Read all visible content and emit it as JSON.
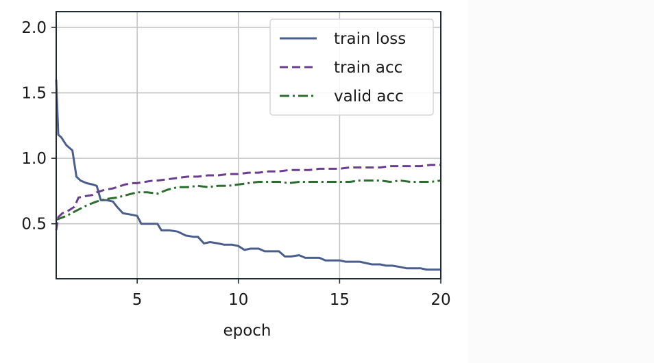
{
  "chart_data": {
    "type": "line",
    "xlabel": "epoch",
    "ylabel": "",
    "xlim": [
      1,
      20
    ],
    "ylim": [
      0.08,
      2.12
    ],
    "xticks": [
      5,
      10,
      15,
      20
    ],
    "yticks": [
      0.5,
      1.0,
      1.5,
      2.0
    ],
    "xtick_labels": [
      "5",
      "10",
      "15",
      "20"
    ],
    "ytick_labels": [
      "0.5",
      "1.0",
      "1.5",
      "2.0"
    ],
    "grid": true,
    "legend_position": "top-right",
    "series": [
      {
        "name": "train loss",
        "color": "#4a5e8c",
        "dash": "solid",
        "x": [
          1.0,
          1.1,
          1.25,
          1.5,
          1.8,
          2.0,
          2.2,
          2.5,
          2.8,
          3.0,
          3.2,
          3.5,
          3.8,
          4.0,
          4.3,
          4.7,
          5.0,
          5.2,
          5.6,
          6.0,
          6.2,
          6.6,
          7.0,
          7.4,
          7.8,
          8.0,
          8.3,
          8.6,
          9.0,
          9.3,
          9.7,
          10.0,
          10.3,
          10.6,
          11.0,
          11.3,
          11.6,
          12.0,
          12.3,
          12.6,
          13.0,
          13.3,
          13.6,
          14.0,
          14.3,
          14.6,
          15.0,
          15.3,
          15.6,
          16.0,
          16.3,
          16.6,
          17.0,
          17.3,
          17.6,
          18.0,
          18.3,
          18.6,
          19.0,
          19.3,
          19.6,
          20.0
        ],
        "y": [
          1.6,
          1.18,
          1.16,
          1.1,
          1.06,
          0.86,
          0.83,
          0.81,
          0.8,
          0.79,
          0.68,
          0.68,
          0.67,
          0.63,
          0.58,
          0.57,
          0.56,
          0.5,
          0.5,
          0.5,
          0.45,
          0.45,
          0.44,
          0.41,
          0.4,
          0.4,
          0.35,
          0.36,
          0.35,
          0.34,
          0.34,
          0.33,
          0.3,
          0.31,
          0.31,
          0.29,
          0.29,
          0.29,
          0.25,
          0.25,
          0.26,
          0.24,
          0.24,
          0.24,
          0.22,
          0.22,
          0.22,
          0.21,
          0.21,
          0.21,
          0.2,
          0.19,
          0.19,
          0.18,
          0.18,
          0.17,
          0.16,
          0.16,
          0.16,
          0.15,
          0.15,
          0.15
        ]
      },
      {
        "name": "train acc",
        "color": "#6a3d8f",
        "dash": "dashed",
        "x": [
          1.0,
          1.1,
          1.3,
          1.6,
          1.9,
          2.1,
          2.4,
          2.8,
          3.0,
          3.4,
          3.8,
          4.0,
          4.4,
          4.8,
          5.0,
          5.4,
          5.8,
          6.0,
          6.5,
          7.0,
          7.5,
          8.0,
          8.5,
          9.0,
          9.5,
          10.0,
          10.5,
          11.0,
          11.5,
          12.0,
          12.5,
          13.0,
          13.5,
          14.0,
          14.5,
          15.0,
          15.5,
          16.0,
          16.5,
          17.0,
          17.5,
          18.0,
          18.5,
          19.0,
          19.5,
          20.0
        ],
        "y": [
          0.45,
          0.55,
          0.58,
          0.6,
          0.63,
          0.7,
          0.71,
          0.72,
          0.74,
          0.76,
          0.77,
          0.78,
          0.8,
          0.81,
          0.81,
          0.82,
          0.83,
          0.83,
          0.84,
          0.85,
          0.86,
          0.86,
          0.87,
          0.87,
          0.88,
          0.88,
          0.89,
          0.89,
          0.9,
          0.9,
          0.91,
          0.91,
          0.91,
          0.92,
          0.92,
          0.92,
          0.93,
          0.93,
          0.93,
          0.93,
          0.94,
          0.94,
          0.94,
          0.94,
          0.95,
          0.95
        ]
      },
      {
        "name": "valid acc",
        "color": "#2e6b2e",
        "dash": "dashdot",
        "x": [
          1.0,
          1.5,
          2.0,
          2.5,
          3.0,
          3.5,
          4.0,
          4.5,
          5.0,
          5.5,
          6.0,
          6.5,
          7.0,
          7.5,
          8.0,
          8.5,
          9.0,
          9.5,
          10.0,
          10.5,
          11.0,
          11.5,
          12.0,
          12.5,
          13.0,
          13.5,
          14.0,
          14.5,
          15.0,
          15.5,
          16.0,
          16.5,
          17.0,
          17.5,
          18.0,
          18.5,
          19.0,
          19.5,
          20.0
        ],
        "y": [
          0.53,
          0.56,
          0.6,
          0.64,
          0.67,
          0.69,
          0.7,
          0.72,
          0.74,
          0.74,
          0.73,
          0.76,
          0.78,
          0.78,
          0.79,
          0.78,
          0.79,
          0.79,
          0.8,
          0.81,
          0.82,
          0.82,
          0.82,
          0.81,
          0.82,
          0.82,
          0.82,
          0.82,
          0.82,
          0.82,
          0.83,
          0.83,
          0.83,
          0.82,
          0.83,
          0.82,
          0.82,
          0.82,
          0.83
        ]
      }
    ]
  }
}
